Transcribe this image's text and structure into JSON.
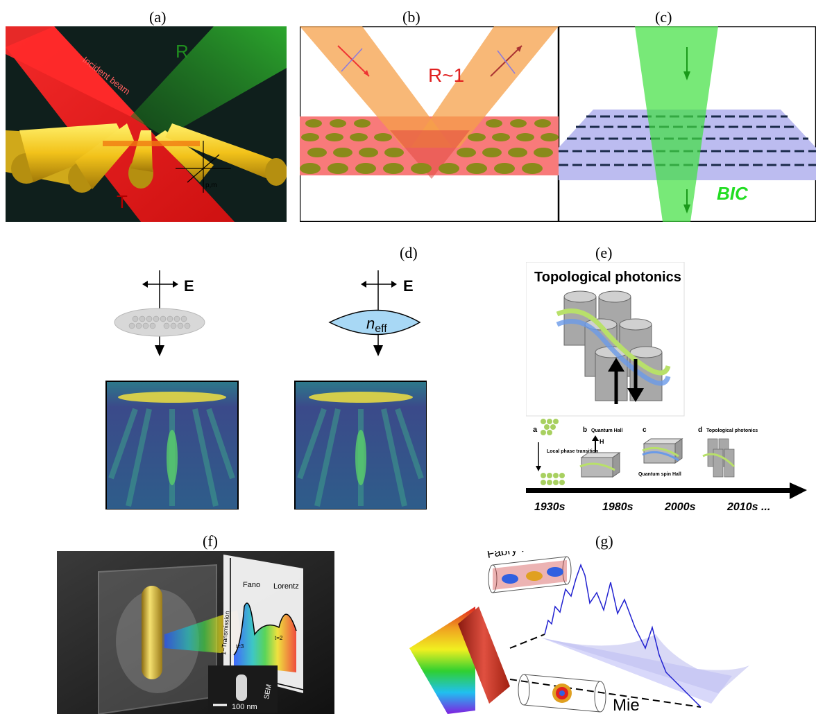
{
  "panels": {
    "a": {
      "label": "(a)",
      "incident": "Incident beam",
      "R": "R",
      "T": "T",
      "pm": "p,m",
      "colors": {
        "bg": "#0f1f1c",
        "red": "#ff1a1a",
        "green": "#2aa52a",
        "gold": "#f2c21a"
      }
    },
    "b": {
      "label": "(b)",
      "text": "R~1"
    },
    "c": {
      "label": "(c)",
      "text": "BIC"
    },
    "d": {
      "label": "(d)",
      "e1": "E",
      "e2": "E",
      "neff": "n",
      "neff_sub": "eff"
    },
    "e": {
      "label": "(e)",
      "title": "Topological photonics",
      "sub_a": "a",
      "sub_a_text": "Local phase transition",
      "sub_b": "b",
      "sub_b_title": "Quantum Hall",
      "sub_b_H": "H",
      "sub_c": "c",
      "sub_c_text": "Quantum spin Hall",
      "sub_d": "d",
      "sub_d_title": "Topological photonics",
      "years": [
        "1930s",
        "1980s",
        "2000s",
        "2010s ..."
      ]
    },
    "f": {
      "label": "(f)",
      "ylabel": "1−Transmission",
      "fano": "Fano",
      "lorentz": "Lorentz",
      "sem": "SEM",
      "scale": "100 nm",
      "t3": "t=3",
      "t2": "t=2"
    },
    "g": {
      "label": "(g)",
      "fp": "Fabry-Perot",
      "mie": "Mie"
    }
  }
}
